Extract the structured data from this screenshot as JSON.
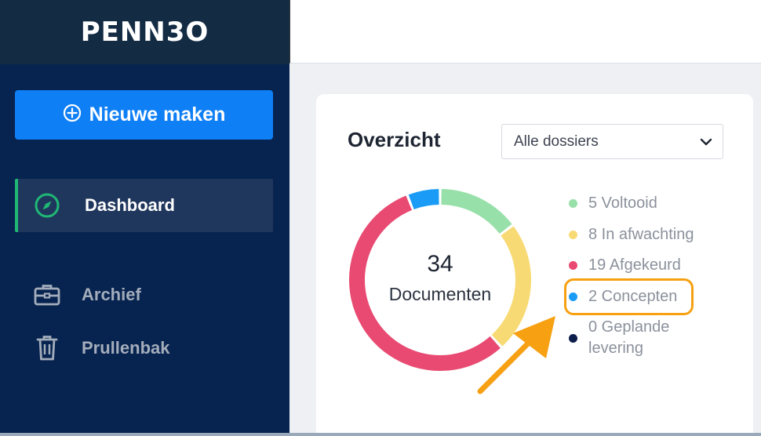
{
  "app": {
    "logo_text": "PENN3O"
  },
  "sidebar": {
    "new_button_label": "Nieuwe maken",
    "items": [
      {
        "label": "Dashboard",
        "icon": "compass-icon",
        "active": true
      },
      {
        "label": "Archief",
        "icon": "briefcase-icon",
        "active": false
      },
      {
        "label": "Prullenbak",
        "icon": "trash-icon",
        "active": false
      }
    ]
  },
  "overview": {
    "title": "Overzicht",
    "filter": {
      "selected": "Alle dossiers"
    },
    "total_count": "34",
    "total_label": "Documenten",
    "legend": [
      {
        "label": "5 Voltooid",
        "count": 5,
        "color": "#98e0a9"
      },
      {
        "label": "8 In afwachting",
        "count": 8,
        "color": "#f8da74"
      },
      {
        "label": "19 Afgekeurd",
        "count": 19,
        "color": "#e84a72"
      },
      {
        "label": "2 Concepten",
        "count": 2,
        "color": "#1a9bf5"
      },
      {
        "label": "0 Geplande levering",
        "count": 0,
        "color": "#0d1e4a"
      }
    ]
  },
  "colors": {
    "sidebar_bg": "#07234f",
    "primary": "#0f7ff5",
    "active_indicator": "#1fb875",
    "highlight": "#f6a012"
  }
}
